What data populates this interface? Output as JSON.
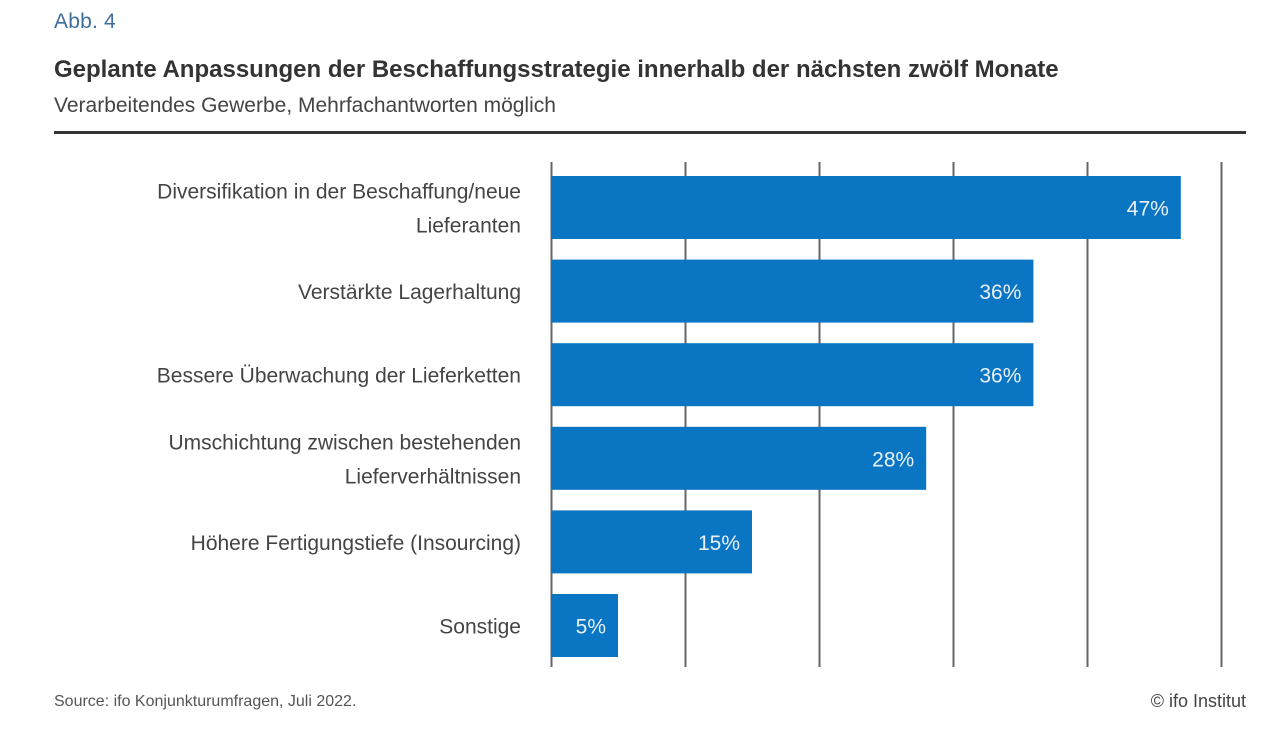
{
  "figure_label": "Abb. 4",
  "footer": {
    "source": "Source: ifo Konjunkturumfragen, Juli 2022.",
    "copyright": "© ifo Institut"
  },
  "colors": {
    "bar": "#0a75c2",
    "gridline": "#666666",
    "figure_label": "#3e6e9a"
  },
  "chart_data": {
    "type": "bar",
    "orientation": "horizontal",
    "title": "Geplante Anpassungen der Beschaffungsstrategie innerhalb der nächsten zwölf Monate",
    "subtitle": "Verarbeitendes Gewerbe, Mehrfachantworten möglich",
    "xlabel": "",
    "ylabel": "",
    "xlim": [
      0,
      50
    ],
    "grid_step": 10,
    "grid": true,
    "categories": [
      [
        "Diversifikation in der Beschaffung/neue",
        "Lieferanten"
      ],
      [
        "Verstärkte Lagerhaltung"
      ],
      [
        "Bessere Überwachung der Lieferketten"
      ],
      [
        "Umschichtung zwischen bestehenden",
        "Lieferverhältnissen"
      ],
      [
        "Höhere Fertigungstiefe (Insourcing)"
      ],
      [
        "Sonstige"
      ]
    ],
    "values": [
      47,
      36,
      36,
      28,
      15,
      5
    ],
    "value_labels": [
      "47%",
      "36%",
      "36%",
      "28%",
      "15%",
      "5%"
    ],
    "unit": "%"
  }
}
